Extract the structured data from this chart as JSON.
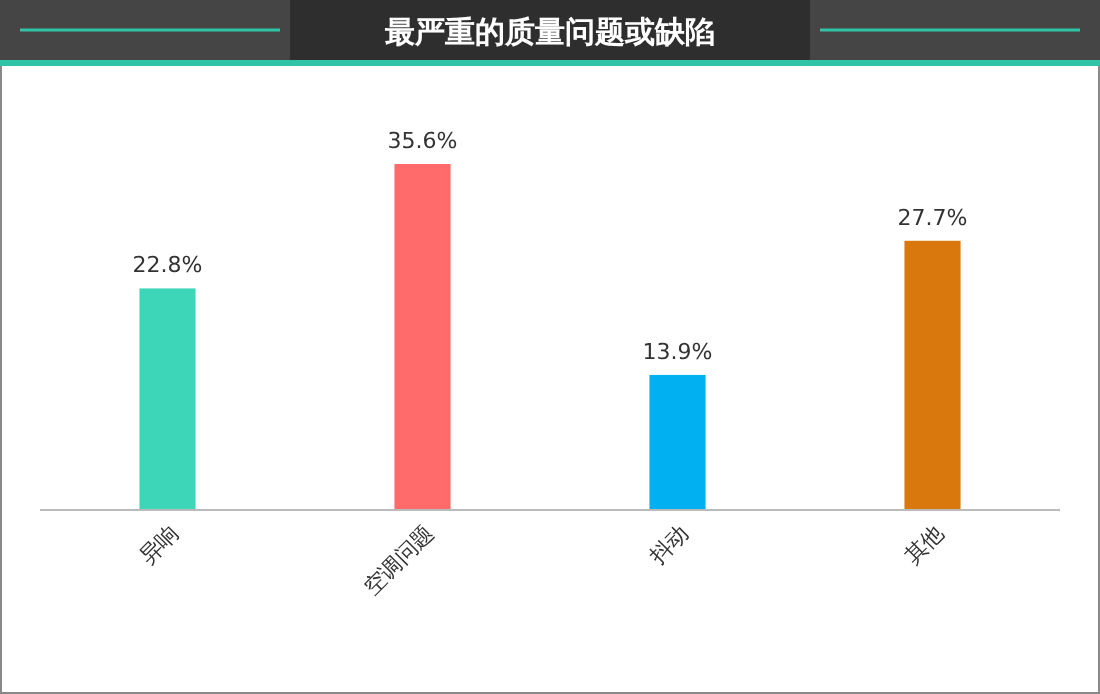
{
  "chart_data": {
    "type": "bar",
    "title": "最严重的质量问题或缺陷",
    "categories": [
      "异响",
      "空调问题",
      "抖动",
      "其他"
    ],
    "values": [
      22.8,
      35.6,
      13.9,
      27.7
    ],
    "colors": [
      "#3dd6b8",
      "#ff6b6b",
      "#00b0f0",
      "#d9780c"
    ],
    "value_labels": [
      "22.8%",
      "35.6%",
      "13.9%",
      "27.7%"
    ]
  }
}
